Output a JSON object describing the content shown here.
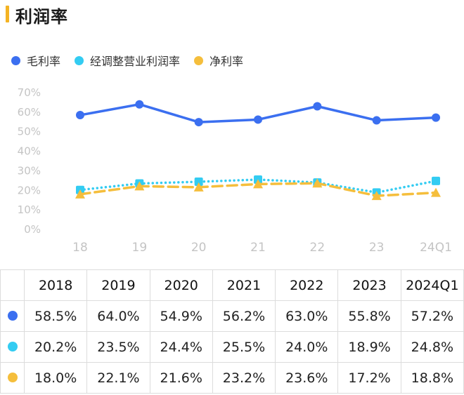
{
  "header": {
    "title": "利润率"
  },
  "colors": {
    "title_bar": "#f4b323",
    "gross": "#3b6ff0",
    "adjusted": "#33ccf2",
    "net": "#f5be3c"
  },
  "chart_data": {
    "type": "line",
    "categories": [
      "18",
      "19",
      "20",
      "21",
      "22",
      "23",
      "24Q1"
    ],
    "y_ticks": [
      "0%",
      "10%",
      "20%",
      "30%",
      "40%",
      "50%",
      "60%",
      "70%"
    ],
    "ylim": [
      0,
      70
    ],
    "unit": "%",
    "grid": false,
    "legend_position": "top-left",
    "series": [
      {
        "name": "毛利率",
        "color": "#3b6ff0",
        "marker": "circle",
        "line": "solid",
        "values": [
          58.5,
          64.0,
          54.9,
          56.2,
          63.0,
          55.8,
          57.2
        ]
      },
      {
        "name": "经调整营业利润率",
        "color": "#33ccf2",
        "marker": "square",
        "line": "dotted",
        "values": [
          20.2,
          23.5,
          24.4,
          25.5,
          24.0,
          18.9,
          24.8
        ]
      },
      {
        "name": "净利率",
        "color": "#f5be3c",
        "marker": "triangle",
        "line": "dashed",
        "values": [
          18.0,
          22.1,
          21.6,
          23.2,
          23.6,
          17.2,
          18.8
        ]
      }
    ]
  },
  "table": {
    "headers": [
      "2018",
      "2019",
      "2020",
      "2021",
      "2022",
      "2023",
      "2024Q1"
    ],
    "rows": [
      {
        "color": "#3b6ff0",
        "cells": [
          "58.5%",
          "64.0%",
          "54.9%",
          "56.2%",
          "63.0%",
          "55.8%",
          "57.2%"
        ]
      },
      {
        "color": "#33ccf2",
        "cells": [
          "20.2%",
          "23.5%",
          "24.4%",
          "25.5%",
          "24.0%",
          "18.9%",
          "24.8%"
        ]
      },
      {
        "color": "#f5be3c",
        "cells": [
          "18.0%",
          "22.1%",
          "21.6%",
          "23.2%",
          "23.6%",
          "17.2%",
          "18.8%"
        ]
      }
    ]
  }
}
